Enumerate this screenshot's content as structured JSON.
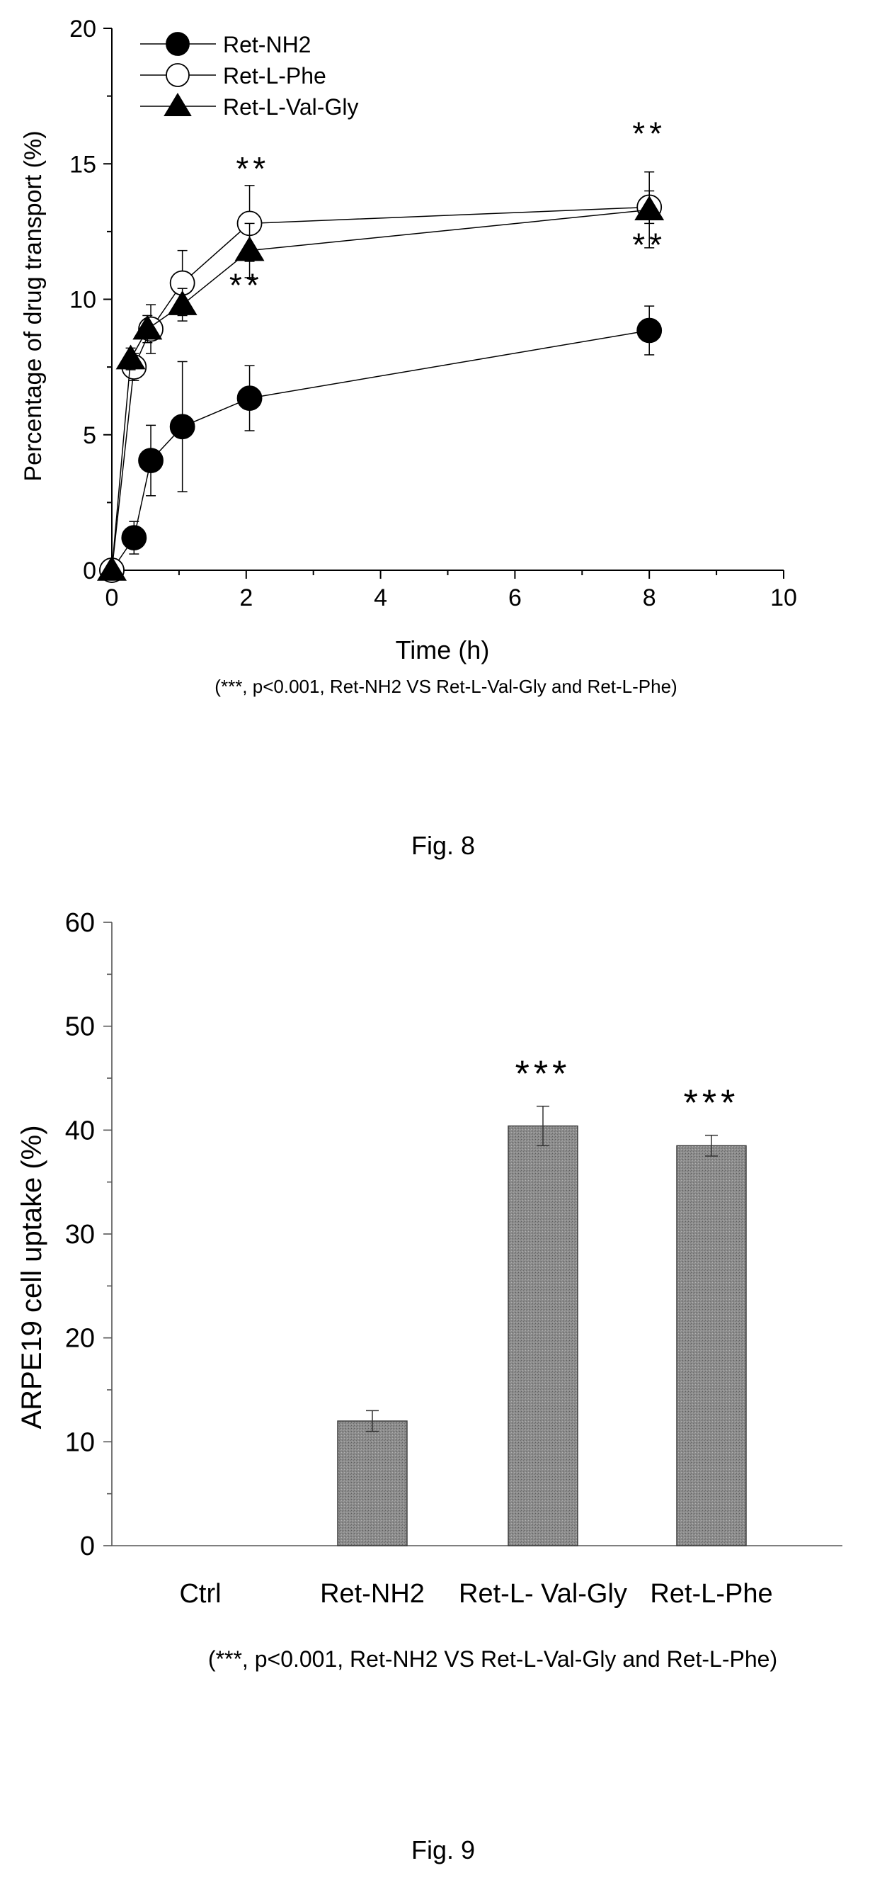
{
  "chart_data": [
    {
      "type": "line",
      "ylabel": "Percentage of drug transport  (%)",
      "xlabel": "Time (h)",
      "xlim": [
        0,
        10
      ],
      "ylim": [
        0,
        20
      ],
      "xticks": [
        "0",
        "2",
        "4",
        "6",
        "8",
        "10"
      ],
      "yticks": [
        "0",
        "5",
        "10",
        "15",
        "20"
      ],
      "legend_position": "top-left",
      "note": "(***, p<0.001, Ret-NH2 VS Ret-L-Val-Gly and Ret-L-Phe)",
      "series": [
        {
          "name": "Ret-NH2",
          "marker": "filled-circle",
          "points": [
            {
              "x": 0,
              "y": 0,
              "err": 0
            },
            {
              "x": 0.33,
              "y": 1.2,
              "err": 0.6
            },
            {
              "x": 0.58,
              "y": 4.05,
              "err": 1.3
            },
            {
              "x": 1.05,
              "y": 5.3,
              "err": 2.4
            },
            {
              "x": 2.05,
              "y": 6.35,
              "err": 1.2
            },
            {
              "x": 8,
              "y": 8.85,
              "err": 0.9
            }
          ]
        },
        {
          "name": "Ret-L-Phe",
          "marker": "open-circle",
          "points": [
            {
              "x": 0,
              "y": 0,
              "err": 0
            },
            {
              "x": 0.33,
              "y": 7.5,
              "err": 0.5
            },
            {
              "x": 0.58,
              "y": 8.9,
              "err": 0.9
            },
            {
              "x": 1.05,
              "y": 10.6,
              "err": 1.2
            },
            {
              "x": 2.05,
              "y": 12.8,
              "err": 1.4
            },
            {
              "x": 8,
              "y": 13.4,
              "err": 0.6
            }
          ]
        },
        {
          "name": "Ret-L-Val-Gly",
          "marker": "filled-triangle",
          "points": [
            {
              "x": 0,
              "y": 0,
              "err": 0
            },
            {
              "x": 0.28,
              "y": 7.8,
              "err": 0.4
            },
            {
              "x": 0.53,
              "y": 8.9,
              "err": 0.5
            },
            {
              "x": 1.05,
              "y": 9.8,
              "err": 0.6
            },
            {
              "x": 2.05,
              "y": 11.8,
              "err": 1.0
            },
            {
              "x": 8,
              "y": 13.3,
              "err": 1.4
            }
          ]
        }
      ],
      "annotations": [
        {
          "text": "**",
          "x": 2.1,
          "y": 14.4
        },
        {
          "text": "**",
          "x": 2.0,
          "y": 10.1
        },
        {
          "text": "**",
          "x": 8.0,
          "y": 15.7
        },
        {
          "text": "**",
          "x": 8.0,
          "y": 11.6
        }
      ]
    },
    {
      "type": "bar",
      "ylabel": "ARPE19 cell uptake (%)",
      "ylim": [
        0,
        60
      ],
      "yticks": [
        "0",
        "10",
        "20",
        "30",
        "40",
        "50",
        "60"
      ],
      "categories": [
        "Ctrl",
        "Ret-NH2",
        "Ret-L- Val-Gly",
        "Ret-L-Phe"
      ],
      "values": [
        0,
        12.0,
        40.4,
        38.5
      ],
      "errors": [
        0,
        1.0,
        1.9,
        1.0
      ],
      "significance": [
        "",
        "",
        "***",
        "***"
      ],
      "note": "(***, p<0.001,  Ret-NH2  VS Ret-L-Val-Gly and Ret-L-Phe)"
    }
  ],
  "captions": {
    "fig8": "Fig. 8",
    "fig9": "Fig. 9"
  }
}
